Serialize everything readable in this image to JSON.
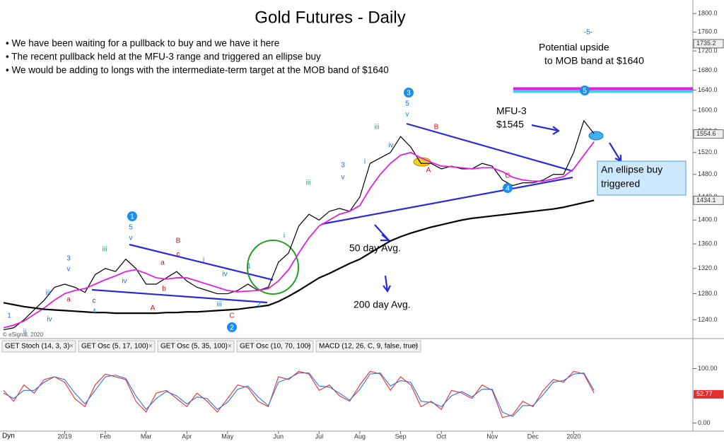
{
  "chart_data": {
    "type": "line",
    "title": "Gold Futures - Daily",
    "log_scale": true,
    "bullets": [
      "• We have been waiting for a pullback to buy and we have it here",
      "• The recent pullback held at the MFU-3 range and triggered an ellipse buy",
      "• We would be adding to longs with the intermediate-term target at the MOB band of $1640"
    ],
    "annotations": [
      "Potential upside",
      "to MOB band at $1640",
      "MFU-3",
      "$1545",
      "An ellipse buy",
      "triggered",
      "50 day Avg.",
      "200 day Avg."
    ],
    "copyright": "© eSignal, 2020",
    "corner_label": "Dyn",
    "tabs": [
      "GET Stoch (14, 3, 3)",
      "GET Osc (5, 17, 100)",
      "GET Osc (5, 35, 100)",
      "GET Osc (10, 70, 100)",
      "MACD (12, 26, C, 9, false, true)"
    ],
    "wave_labels": [
      "1",
      "ii",
      "iii",
      "iv",
      "3",
      "v",
      "a",
      "c",
      "4",
      "iii",
      "iv",
      "5",
      "v",
      "B",
      "c",
      "a",
      "b",
      "A",
      "iv",
      "i",
      "iii",
      "C",
      "1",
      "2",
      "i",
      "iii",
      "3",
      "v",
      "i",
      "iii",
      "iv",
      "5",
      "v",
      "B",
      "A",
      "C",
      "-5-"
    ],
    "wave_circles": [
      "1",
      "2",
      "3",
      "4",
      "5"
    ],
    "categories": [
      null,
      null,
      null,
      null,
      null,
      null,
      "2019",
      null,
      null,
      null,
      "Feb",
      null,
      null,
      null,
      "Mar",
      null,
      null,
      null,
      "Apr",
      null,
      null,
      null,
      "May",
      null,
      null,
      null,
      null,
      "Jun",
      null,
      null,
      null,
      "Jul",
      null,
      null,
      null,
      "Aug",
      null,
      null,
      null,
      "Sep",
      null,
      null,
      null,
      "Oct",
      null,
      null,
      null,
      null,
      "Nov",
      null,
      null,
      null,
      "Dec",
      null,
      null,
      null,
      "2020",
      null,
      null
    ],
    "series": [
      {
        "name": "Price",
        "color": "#000000",
        "values": [
          1225,
          1228,
          1240,
          1255,
          1270,
          1290,
          1295,
          1290,
          1282,
          1310,
          1320,
          1315,
          1335,
          1320,
          1295,
          1295,
          1305,
          1315,
          1300,
          1290,
          1285,
          1280,
          1280,
          1285,
          1295,
          1285,
          1290,
          1330,
          1345,
          1390,
          1410,
          1400,
          1415,
          1420,
          1415,
          1440,
          1500,
          1510,
          1520,
          1550,
          1530,
          1500,
          1500,
          1490,
          1495,
          1490,
          1490,
          1500,
          1495,
          1470,
          1460,
          1465,
          1465,
          1470,
          1480,
          1480,
          1520,
          1580,
          1555
        ]
      },
      {
        "name": "50 day Avg.",
        "color": "#e020e0",
        "values": [
          1228,
          1232,
          1238,
          1248,
          1258,
          1270,
          1280,
          1285,
          1288,
          1295,
          1302,
          1308,
          1315,
          1318,
          1312,
          1305,
          1303,
          1305,
          1305,
          1300,
          1295,
          1290,
          1285,
          1283,
          1284,
          1285,
          1288,
          1300,
          1318,
          1345,
          1370,
          1390,
          1400,
          1410,
          1415,
          1425,
          1455,
          1480,
          1500,
          1515,
          1520,
          1510,
          1502,
          1495,
          1494,
          1492,
          1490,
          1492,
          1492,
          1485,
          1475,
          1470,
          1468,
          1468,
          1472,
          1476,
          1490,
          1515,
          1540
        ]
      },
      {
        "name": "200 day Avg.",
        "color": "#000000",
        "values": [
          1266,
          1263,
          1260,
          1258,
          1256,
          1255,
          1254,
          1253,
          1252,
          1251,
          1251,
          1250,
          1250,
          1250,
          1250,
          1250,
          1251,
          1251,
          1252,
          1252,
          1253,
          1254,
          1255,
          1256,
          1258,
          1260,
          1262,
          1268,
          1276,
          1285,
          1295,
          1305,
          1312,
          1320,
          1328,
          1335,
          1345,
          1355,
          1365,
          1372,
          1378,
          1383,
          1388,
          1392,
          1396,
          1400,
          1403,
          1405,
          1407,
          1409,
          1411,
          1413,
          1415,
          1417,
          1419,
          1422,
          1426,
          1430,
          1434
        ]
      }
    ],
    "ylim": [
      1212,
      1830
    ],
    "yticks": [
      {
        "value": 1240,
        "label": "1240.0"
      },
      {
        "value": 1280,
        "label": "1280.0"
      },
      {
        "value": 1320,
        "label": "1320.0"
      },
      {
        "value": 1360,
        "label": "1360.0"
      },
      {
        "value": 1400,
        "label": "1400.0"
      },
      {
        "value": 1440,
        "label": "1440.0"
      },
      {
        "value": 1480,
        "label": "1480.0"
      },
      {
        "value": 1520,
        "label": "1520.0"
      },
      {
        "value": 1560,
        "label": "1560.0"
      },
      {
        "value": 1600,
        "label": "1600.0"
      },
      {
        "value": 1640,
        "label": "1640.0"
      },
      {
        "value": 1680,
        "label": "1680.0"
      },
      {
        "value": 1720,
        "label": "1720.0"
      },
      {
        "value": 1760,
        "label": "1760.0"
      },
      {
        "value": 1800,
        "label": "1800.0"
      }
    ],
    "price_tags": [
      {
        "value": 1735.2,
        "label": "1735.2"
      },
      {
        "value": 1554.6,
        "label": "1554.6"
      },
      {
        "value": 1434.1,
        "label": "1434.1"
      }
    ],
    "mob_band": 1640,
    "oscillator": {
      "ylim": [
        -15,
        128
      ],
      "yticks": [
        {
          "value": 100,
          "label": "100.00"
        },
        {
          "value": 0,
          "label": "0.00"
        }
      ],
      "last": {
        "value": 52.77,
        "label": "52.77"
      },
      "series": [
        {
          "name": "%K",
          "color": "#e03030",
          "values": [
            60,
            40,
            70,
            55,
            80,
            85,
            75,
            45,
            30,
            70,
            90,
            85,
            80,
            40,
            20,
            55,
            60,
            45,
            30,
            55,
            40,
            20,
            45,
            70,
            65,
            40,
            30,
            85,
            80,
            95,
            90,
            60,
            70,
            50,
            40,
            70,
            95,
            90,
            60,
            85,
            70,
            30,
            40,
            25,
            60,
            55,
            45,
            70,
            60,
            10,
            15,
            40,
            30,
            60,
            80,
            75,
            95,
            90,
            55
          ]
        },
        {
          "name": "%D",
          "color": "#3070e0",
          "values": [
            55,
            45,
            60,
            60,
            75,
            85,
            80,
            55,
            35,
            60,
            85,
            88,
            82,
            50,
            25,
            45,
            58,
            50,
            35,
            48,
            45,
            25,
            38,
            62,
            68,
            48,
            32,
            75,
            82,
            92,
            92,
            68,
            66,
            55,
            42,
            62,
            90,
            92,
            68,
            78,
            75,
            40,
            38,
            30,
            50,
            58,
            48,
            62,
            62,
            20,
            12,
            32,
            32,
            52,
            75,
            78,
            90,
            92,
            60
          ]
        }
      ]
    }
  }
}
